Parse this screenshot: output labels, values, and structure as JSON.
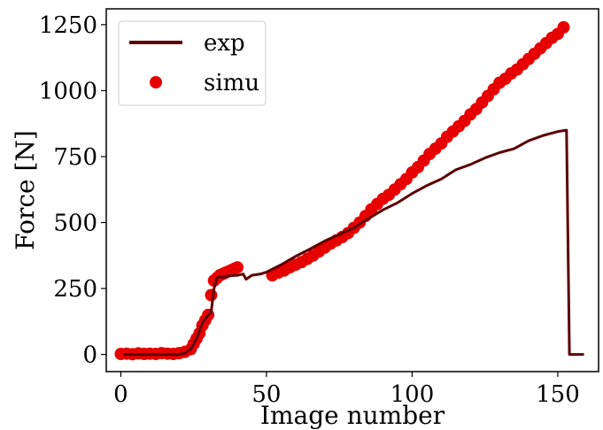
{
  "chart_data": {
    "type": "line",
    "title": "",
    "xlabel": "Image number",
    "ylabel": "Force [N]",
    "xlim": [
      -5,
      164
    ],
    "ylim": [
      -65,
      1310
    ],
    "xticks": [
      0,
      50,
      100,
      150
    ],
    "yticks": [
      0,
      250,
      500,
      750,
      1000,
      1250
    ],
    "grid": false,
    "legend_position": "top-left",
    "series": [
      {
        "name": "exp",
        "style": "line",
        "color": "#5c0000",
        "x": [
          1,
          5,
          10,
          15,
          20,
          22,
          24,
          26,
          28,
          30,
          31,
          32,
          33,
          34,
          35,
          37,
          40,
          42,
          43,
          45,
          48,
          50,
          55,
          60,
          65,
          70,
          75,
          80,
          85,
          90,
          95,
          100,
          105,
          110,
          115,
          120,
          125,
          130,
          135,
          140,
          145,
          150,
          153,
          154,
          159
        ],
        "y": [
          0,
          0,
          0,
          0,
          0,
          5,
          20,
          60,
          120,
          150,
          160,
          250,
          290,
          295,
          292,
          298,
          300,
          305,
          285,
          300,
          305,
          312,
          340,
          372,
          400,
          430,
          455,
          480,
          515,
          548,
          575,
          610,
          640,
          665,
          700,
          720,
          745,
          765,
          780,
          810,
          830,
          845,
          850,
          0,
          0
        ]
      },
      {
        "name": "simu",
        "style": "scatter",
        "color": "#e60000",
        "x": [
          0,
          2,
          4,
          6,
          8,
          10,
          12,
          14,
          16,
          18,
          20,
          22,
          24,
          25,
          26,
          27,
          28,
          29,
          30,
          31,
          32,
          33,
          34,
          35,
          36,
          37,
          38,
          39,
          40,
          52,
          54,
          56,
          58,
          60,
          62,
          64,
          66,
          68,
          70,
          72,
          74,
          76,
          78,
          80,
          82,
          84,
          86,
          88,
          90,
          92,
          94,
          96,
          98,
          100,
          102,
          104,
          106,
          108,
          110,
          112,
          114,
          116,
          118,
          120,
          122,
          124,
          126,
          128,
          130,
          132,
          134,
          136,
          138,
          140,
          142,
          144,
          146,
          148,
          150,
          152
        ],
        "y": [
          2,
          3,
          1,
          4,
          2,
          3,
          2,
          5,
          3,
          2,
          5,
          10,
          20,
          40,
          60,
          80,
          110,
          130,
          150,
          225,
          280,
          290,
          300,
          305,
          310,
          315,
          320,
          325,
          330,
          300,
          310,
          318,
          330,
          340,
          350,
          362,
          375,
          390,
          405,
          420,
          432,
          445,
          460,
          480,
          500,
          525,
          550,
          570,
          590,
          605,
          625,
          645,
          665,
          690,
          710,
          735,
          760,
          780,
          800,
          825,
          845,
          865,
          885,
          910,
          930,
          955,
          980,
          1005,
          1030,
          1045,
          1065,
          1080,
          1100,
          1120,
          1140,
          1160,
          1180,
          1200,
          1215,
          1240
        ]
      }
    ]
  }
}
